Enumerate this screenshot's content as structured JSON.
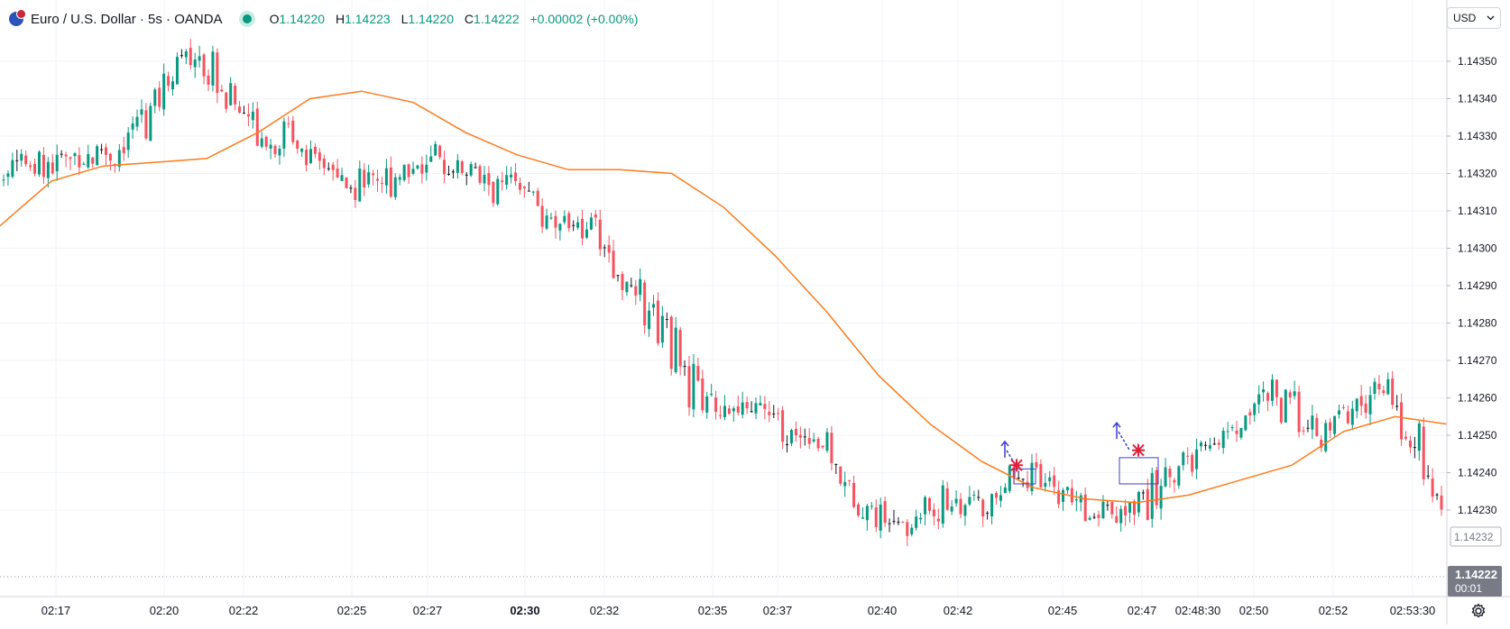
{
  "legend": {
    "symbol": "Euro / U.S. Dollar · 5s · OANDA",
    "open_label": "O",
    "open": "1.14220",
    "high_label": "H",
    "high": "1.14223",
    "low_label": "L",
    "low": "1.14220",
    "close_label": "C",
    "close": "1.14222",
    "change": "+0.00002 (+0.00%)",
    "status_color": "#089981"
  },
  "currency_button": {
    "label": "USD"
  },
  "price_scale": {
    "last_price": "1.14222",
    "countdown": "00:01",
    "hover_price": "1.14232"
  },
  "colors": {
    "up": "#089981",
    "down": "#f7525f",
    "moving_average": "#ff7a1a",
    "annotation": "#3d3dd6",
    "marker": "#e0203a"
  },
  "icons": {
    "settings": "gear-icon",
    "symbol": "flag-icon"
  },
  "chart_data": {
    "type": "candlestick",
    "y_axis_ticks": [
      "1.14350",
      "1.14340",
      "1.14330",
      "1.14320",
      "1.14310",
      "1.14300",
      "1.14290",
      "1.14280",
      "1.14270",
      "1.14260",
      "1.14250",
      "1.14240",
      "1.14230"
    ],
    "x_axis_ticks": [
      "02:17",
      "02:20",
      "02:22",
      "02:25",
      "02:27",
      "02:30",
      "02:32",
      "02:35",
      "02:37",
      "02:40",
      "02:42",
      "02:45",
      "02:47",
      "02:48:30",
      "02:50",
      "02:52",
      "02:53:30"
    ],
    "bold_x_tick": "02:30",
    "price_path": [
      [
        1.14318,
        1.14325
      ],
      [
        1.14322,
        1.14327
      ],
      [
        1.14321,
        1.14323
      ],
      [
        1.14324,
        1.14326
      ],
      [
        1.14326,
        1.14322
      ],
      [
        1.14323,
        1.14331
      ],
      [
        1.1433,
        1.14345
      ],
      [
        1.14347,
        1.14353
      ],
      [
        1.14355,
        1.14348
      ],
      [
        1.14348,
        1.1434
      ],
      [
        1.14337,
        1.14328
      ],
      [
        1.14327,
        1.14333
      ],
      [
        1.14335,
        1.14328
      ],
      [
        1.14322,
        1.1432
      ],
      [
        1.14318,
        1.14311
      ],
      [
        1.14315,
        1.14323
      ],
      [
        1.14326,
        1.14313
      ],
      [
        1.14317,
        1.14325
      ],
      [
        1.14327,
        1.14322
      ],
      [
        1.14323,
        1.14321
      ],
      [
        1.14319,
        1.14312
      ],
      [
        1.14314,
        1.1432
      ],
      [
        1.14312,
        1.14307
      ],
      [
        1.14308,
        1.14304
      ],
      [
        1.14308,
        1.14305
      ],
      [
        1.143,
        1.14293
      ],
      [
        1.1429,
        1.14285
      ],
      [
        1.14283,
        1.14276
      ],
      [
        1.14273,
        1.14262
      ],
      [
        1.14265,
        1.14255
      ],
      [
        1.14258,
        1.14251
      ],
      [
        1.14256,
        1.14259
      ],
      [
        1.14256,
        1.1425
      ],
      [
        1.14252,
        1.14248
      ],
      [
        1.14246,
        1.14238
      ],
      [
        1.14236,
        1.14233
      ],
      [
        1.1423,
        1.14225
      ],
      [
        1.14226,
        1.14222
      ],
      [
        1.14228,
        1.14234
      ],
      [
        1.14232,
        1.14233
      ],
      [
        1.14228,
        1.14232
      ],
      [
        1.14233,
        1.1424
      ],
      [
        1.1424,
        1.14238
      ],
      [
        1.14235,
        1.14236
      ],
      [
        1.14233,
        1.14229
      ],
      [
        1.14228,
        1.1423
      ],
      [
        1.1423,
        1.14226
      ],
      [
        1.14226,
        1.14238
      ],
      [
        1.14239,
        1.14243
      ],
      [
        1.14243,
        1.14244
      ],
      [
        1.14246,
        1.14251
      ],
      [
        1.14252,
        1.14263
      ],
      [
        1.14263,
        1.14259
      ],
      [
        1.14258,
        1.1425
      ],
      [
        1.1425,
        1.14248
      ],
      [
        1.14251,
        1.14257
      ],
      [
        1.14258,
        1.14264
      ],
      [
        1.14264,
        1.14258
      ],
      [
        1.14255,
        1.14238
      ],
      [
        1.14237,
        1.14222
      ]
    ],
    "moving_average": [
      1.14306,
      1.14318,
      1.14322,
      1.14323,
      1.14324,
      1.14331,
      1.1434,
      1.14342,
      1.14339,
      1.14331,
      1.14325,
      1.14321,
      1.14321,
      1.1432,
      1.14311,
      1.14298,
      1.14283,
      1.14266,
      1.14253,
      1.14243,
      1.14236,
      1.14233,
      1.14232,
      1.14234,
      1.14238,
      1.14242,
      1.14251,
      1.14255,
      1.14253
    ],
    "annotations": [
      {
        "type": "rectangle",
        "time_range": [
          "02:45:20",
          "02:45:50"
        ],
        "price_range": [
          1.14237,
          1.14241
        ]
      },
      {
        "type": "rectangle",
        "time_range": [
          "02:48:20",
          "02:49:20"
        ],
        "price_range": [
          1.14237,
          1.14244
        ]
      },
      {
        "type": "arrow",
        "at": "02:45:20",
        "price": 1.14244,
        "direction": "up"
      },
      {
        "type": "arrow",
        "at": "02:48:30",
        "price": 1.14249,
        "direction": "up"
      },
      {
        "type": "marker",
        "shape": "asterisk",
        "at": "02:45:25",
        "price": 1.14242
      },
      {
        "type": "marker",
        "shape": "asterisk",
        "at": "02:48:50",
        "price": 1.14246
      }
    ]
  }
}
